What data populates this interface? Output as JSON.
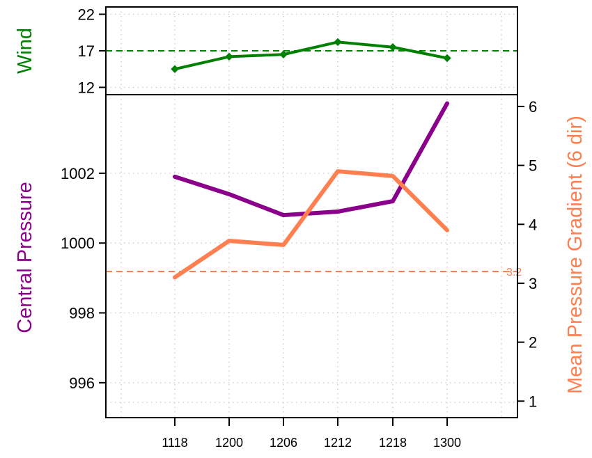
{
  "colors": {
    "wind": "#008000",
    "pressure": "#8b008b",
    "gradient": "#ff7f50",
    "grid": "#c8c8c8",
    "axis": "#000000"
  },
  "chart_data": [
    {
      "type": "line",
      "panel": "top",
      "ylabel": "Wind",
      "categories": [
        "1118",
        "1200",
        "1206",
        "1212",
        "1218",
        "1300"
      ],
      "ylim": [
        11,
        23
      ],
      "yticks": [
        12,
        17,
        22
      ],
      "series": [
        {
          "values": [
            14.5,
            16.2,
            16.5,
            18.2,
            17.5,
            16
          ]
        }
      ],
      "reference_line": {
        "value": 17,
        "style": "dashed"
      },
      "markers": "diamond",
      "grid": true
    },
    {
      "type": "line",
      "panel": "bottom",
      "ylabel": "Central Pressure",
      "y2label": "Mean Pressure Gradient (6 dir)",
      "categories": [
        "1118",
        "1200",
        "1206",
        "1212",
        "1218",
        "1300"
      ],
      "ylim": [
        995,
        1004.25
      ],
      "yticks": [
        996,
        998,
        1000,
        1002
      ],
      "y2lim": [
        0.72,
        6.2
      ],
      "y2ticks": [
        1,
        2,
        3,
        4,
        5,
        6
      ],
      "series": [
        {
          "axis": "left",
          "values": [
            1001.9,
            1001.4,
            1000.8,
            1000.9,
            1001.2,
            1004.0
          ]
        },
        {
          "axis": "right",
          "values": [
            3.1,
            3.72,
            3.65,
            4.9,
            4.82,
            3.9
          ]
        }
      ],
      "reference_line": {
        "axis": "right",
        "value": 3.2,
        "label": "3.2",
        "style": "dashed"
      },
      "grid": true
    }
  ]
}
